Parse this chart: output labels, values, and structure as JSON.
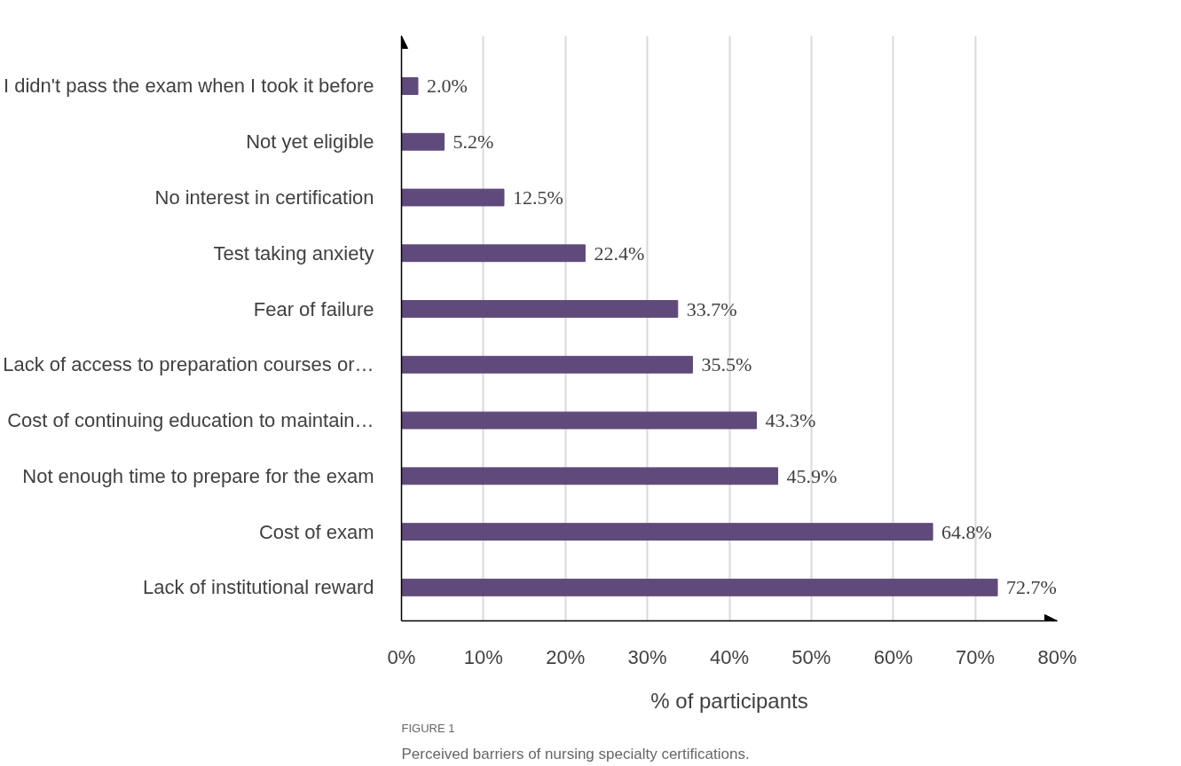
{
  "chart_data": {
    "type": "bar",
    "orientation": "horizontal",
    "xlabel": "% of participants",
    "categories": [
      "I didn't pass the exam when I took it before",
      "Not yet eligible",
      "No interest in certification",
      "Test taking anxiety",
      "Fear of failure",
      "Lack of access to preparation courses or…",
      "Cost of continuing education to maintain…",
      "Not enough time to prepare for the exam",
      "Cost of exam",
      "Lack of institutional reward"
    ],
    "values": [
      2.0,
      5.2,
      12.5,
      22.4,
      33.7,
      35.5,
      43.3,
      45.9,
      64.8,
      72.7
    ],
    "value_labels": [
      "2.0%",
      "5.2%",
      "12.5%",
      "22.4%",
      "33.7%",
      "35.5%",
      "43.3%",
      "45.9%",
      "64.8%",
      "72.7%"
    ],
    "color": "#604a7b",
    "xlim": [
      0,
      80
    ],
    "xticks": [
      {
        "value": 0,
        "label": "0%"
      },
      {
        "value": 10,
        "label": "10%"
      },
      {
        "value": 20,
        "label": "20%"
      },
      {
        "value": 30,
        "label": "30%"
      },
      {
        "value": 40,
        "label": "40%"
      },
      {
        "value": 50,
        "label": "50%"
      },
      {
        "value": 60,
        "label": "60%"
      },
      {
        "value": 70,
        "label": "70%"
      },
      {
        "value": 80,
        "label": "80%"
      }
    ],
    "grid": "x",
    "annotations": [
      "FIGURE 1",
      "Perceived barriers of nursing specialty certifications."
    ]
  }
}
